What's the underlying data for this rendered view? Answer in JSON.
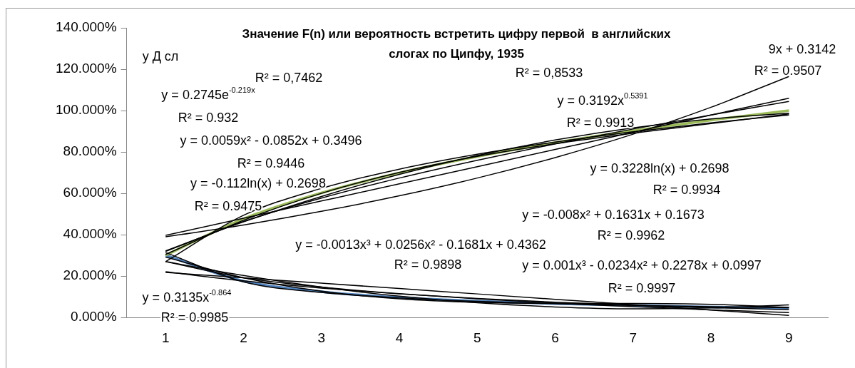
{
  "chart_data": {
    "type": "line",
    "title": "Значение F(n) или вероятность встретить цифру первой  в английских слогах по Ципфу, 1935",
    "categories": [
      "1",
      "2",
      "3",
      "4",
      "5",
      "6",
      "7",
      "8",
      "9"
    ],
    "series": [
      {
        "color": "#9bbb59",
        "values": [
          30.1,
          47.7,
          60.2,
          69.9,
          77.8,
          84.5,
          90.3,
          95.4,
          100.0
        ]
      },
      {
        "color": "#4f81bd",
        "values": [
          30.1,
          17.6,
          12.5,
          9.7,
          7.9,
          6.7,
          5.8,
          5.1,
          4.6
        ]
      },
      {
        "color": "#000000",
        "values": [
          27.0,
          49.4,
          62.4,
          71.7,
          78.9,
          84.8,
          89.8,
          94.1,
          97.9
        ]
      },
      {
        "color": "#000000",
        "values": [
          32.2,
          46.2,
          58.5,
          69.2,
          78.3,
          85.8,
          91.7,
          96.0,
          98.7
        ]
      },
      {
        "color": "#000000",
        "values": [
          30.5,
          47.0,
          60.0,
          70.1,
          77.9,
          84.0,
          89.1,
          93.7,
          98.4
        ]
      },
      {
        "color": "#000000",
        "values": [
          31.9,
          46.4,
          57.7,
          67.4,
          76.0,
          83.9,
          91.1,
          97.9,
          104.4
        ]
      },
      {
        "color": "#000000",
        "values": [
          39.7,
          48.0,
          56.3,
          64.6,
          72.9,
          81.2,
          89.5,
          97.9,
          106.0
        ]
      },
      {
        "color": "#000000",
        "values": [
          39.0,
          44.7,
          51.3,
          58.8,
          67.4,
          77.3,
          88.6,
          101.6,
          116.5
        ]
      },
      {
        "color": "#000000",
        "values": [
          22.1,
          17.7,
          14.2,
          11.4,
          9.2,
          7.4,
          5.9,
          4.8,
          3.8
        ]
      },
      {
        "color": "#000000",
        "values": [
          27.0,
          20.3,
          14.7,
          10.3,
          7.1,
          5.1,
          4.2,
          4.6,
          6.1
        ]
      },
      {
        "color": "#000000",
        "values": [
          27.0,
          19.2,
          14.7,
          11.5,
          9.0,
          6.9,
          5.2,
          3.7,
          2.4
        ]
      },
      {
        "color": "#000000",
        "values": [
          29.2,
          19.2,
          12.7,
          9.0,
          7.3,
          6.8,
          6.8,
          6.4,
          4.9
        ]
      },
      {
        "color": "#000000",
        "values": [
          31.4,
          17.2,
          12.1,
          9.5,
          7.8,
          6.7,
          5.8,
          5.2,
          4.7
        ]
      },
      {
        "color": "#000000",
        "values": [
          21.8,
          19.2,
          16.6,
          14.0,
          11.4,
          8.8,
          6.2,
          3.6,
          1.0
        ]
      }
    ],
    "ylim": [
      0,
      140
    ],
    "yticks": [
      {
        "value": 0,
        "label": "0.000%"
      },
      {
        "value": 20,
        "label": "20.000%"
      },
      {
        "value": 40,
        "label": "40.000%"
      },
      {
        "value": 60,
        "label": "60.000%"
      },
      {
        "value": 80,
        "label": "80.000%"
      },
      {
        "value": 100,
        "label": "100.000%"
      },
      {
        "value": 120,
        "label": "120.000%"
      },
      {
        "value": 140,
        "label": "140.000%"
      }
    ],
    "grid": false,
    "legend": false,
    "marker": "none",
    "line_style": "solid",
    "annotations": [
      "y Д сл",
      "R² = 0,7462",
      "y = 0.2745e$^{-0.219x}$",
      "R² = 0.932",
      "y = 0.0059x² - 0.0852x + 0.3496",
      "R² = 0.9446",
      "y = -0.112ln(x) + 0.2698",
      "R² = 0.9475",
      "y = -0.0013x³ + 0.0256x² - 0.1681x + 0.4362",
      "R² = 0.9898",
      "y = 0.3135x$^{-0.864}$",
      "R² = 0.9985",
      "R² = 0,8533",
      "y = 0.3192x$^{0.5391}$",
      "R² = 0.9913",
      "9x + 0.3142",
      "R² = 0.9507",
      "y = 0.3228ln(x) + 0.2698",
      "R² = 0.9934",
      "y = -0.008x² + 0.1631x + 0.1673",
      "R² = 0.9962",
      "y = 0.001x³ - 0.0234x² + 0.2278x + 0.0997",
      "R² = 0.9997"
    ]
  }
}
